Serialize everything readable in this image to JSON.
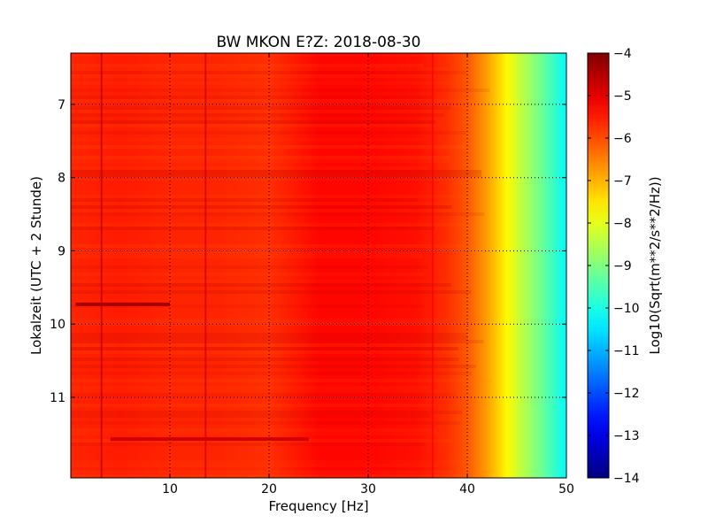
{
  "chart_data": {
    "type": "heatmap",
    "title": "BW MKON E?Z: 2018-08-30",
    "xlabel": "Frequency [Hz]",
    "ylabel": "Lokalzeit (UTC + 2 Stunde)",
    "xlim": [
      0,
      50
    ],
    "ylim": [
      6.3,
      12.1
    ],
    "ylim_inverted": true,
    "x_ticks": [
      10,
      20,
      30,
      40,
      50
    ],
    "x_tick_labels": [
      "10",
      "20",
      "30",
      "40",
      "50"
    ],
    "y_ticks": [
      7,
      8,
      9,
      10,
      11
    ],
    "y_tick_labels": [
      "7",
      "8",
      "9",
      "10",
      "11"
    ],
    "grid": "dotted",
    "colorbar": {
      "label": "Log10(Sqrt(m**2/s**2/Hz))",
      "range": [
        -14,
        -4
      ],
      "ticks": [
        -4,
        -5,
        -6,
        -7,
        -8,
        -9,
        -10,
        -11,
        -12,
        -13,
        -14
      ],
      "tick_labels": [
        "−4",
        "−5",
        "−6",
        "−7",
        "−8",
        "−9",
        "−10",
        "−11",
        "−12",
        "−13",
        "−14"
      ],
      "colormap": "jet"
    },
    "frequency_profile": {
      "freqs_hz": [
        0,
        5,
        10,
        15,
        20,
        25,
        30,
        35,
        38,
        40,
        42,
        44,
        46,
        48,
        50
      ],
      "log10_amplitude": [
        -5.6,
        -5.5,
        -5.6,
        -5.6,
        -5.7,
        -5.3,
        -5.3,
        -5.4,
        -5.7,
        -6.1,
        -6.8,
        -7.7,
        -8.6,
        -9.4,
        -10.3
      ]
    },
    "features": [
      {
        "kind": "horizontal-line",
        "time": 9.73,
        "freq_range": [
          0.5,
          10
        ],
        "log10_amplitude": -4.4
      },
      {
        "kind": "horizontal-line",
        "time": 11.57,
        "freq_range": [
          4,
          24
        ],
        "log10_amplitude": -4.8
      },
      {
        "kind": "vertical-line",
        "freq": 3.1,
        "log10_amplitude": -4.6
      },
      {
        "kind": "vertical-line",
        "freq": 13.6,
        "log10_amplitude": -4.8
      },
      {
        "kind": "vertical-line",
        "freq": 36.5,
        "log10_amplitude": -5.2
      }
    ]
  }
}
